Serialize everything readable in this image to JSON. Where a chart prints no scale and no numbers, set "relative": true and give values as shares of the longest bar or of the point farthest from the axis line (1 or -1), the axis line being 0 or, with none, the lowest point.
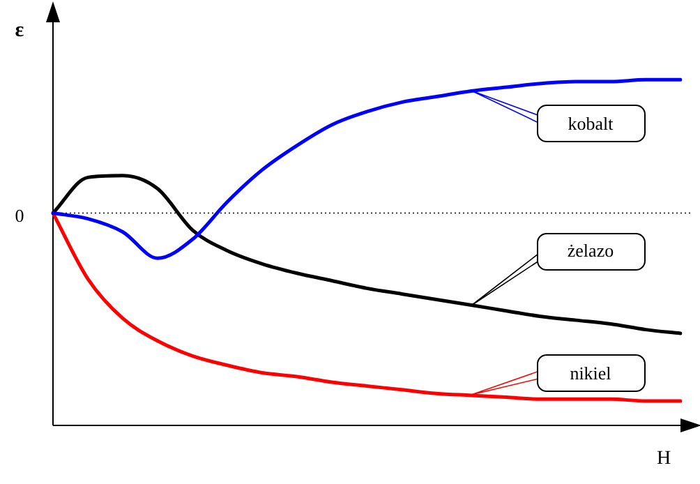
{
  "chart_data": {
    "type": "line",
    "relative": true,
    "xlabel": "H",
    "ylabel": "ε",
    "legend": "right",
    "grid": false,
    "marker": "none",
    "line_style": "solid",
    "categories": [
      null,
      null,
      null,
      null,
      null,
      null,
      null,
      null,
      null,
      null,
      null,
      null,
      null,
      null,
      null,
      null,
      null,
      null,
      null
    ],
    "ref_lines": [
      {
        "axis": "y",
        "value": 0,
        "label": "0",
        "color": "#000000",
        "line_style": "dotted"
      }
    ],
    "series": [
      {
        "name": "kobalt",
        "color": "#0000ff",
        "values": [
          0,
          -0.03,
          -0.1,
          -0.24,
          -0.14,
          0.06,
          0.23,
          0.36,
          0.47,
          0.54,
          0.59,
          0.62,
          0.65,
          0.67,
          0.69,
          0.7,
          0.7,
          0.71,
          0.71
        ]
      },
      {
        "name": "żelazo",
        "color": "#000000",
        "values": [
          0,
          0.19,
          0.2,
          0.13,
          -0.09,
          -0.2,
          -0.27,
          -0.32,
          -0.36,
          -0.4,
          -0.43,
          -0.46,
          -0.49,
          -0.52,
          -0.55,
          -0.57,
          -0.59,
          -0.62,
          -0.64
        ]
      },
      {
        "name": "nikiel",
        "color": "#ff0000",
        "values": [
          0,
          -0.35,
          -0.56,
          -0.68,
          -0.76,
          -0.81,
          -0.85,
          -0.87,
          -0.9,
          -0.92,
          -0.94,
          -0.96,
          -0.97,
          -0.98,
          -0.99,
          -0.99,
          -0.99,
          -1,
          -1
        ]
      }
    ]
  }
}
